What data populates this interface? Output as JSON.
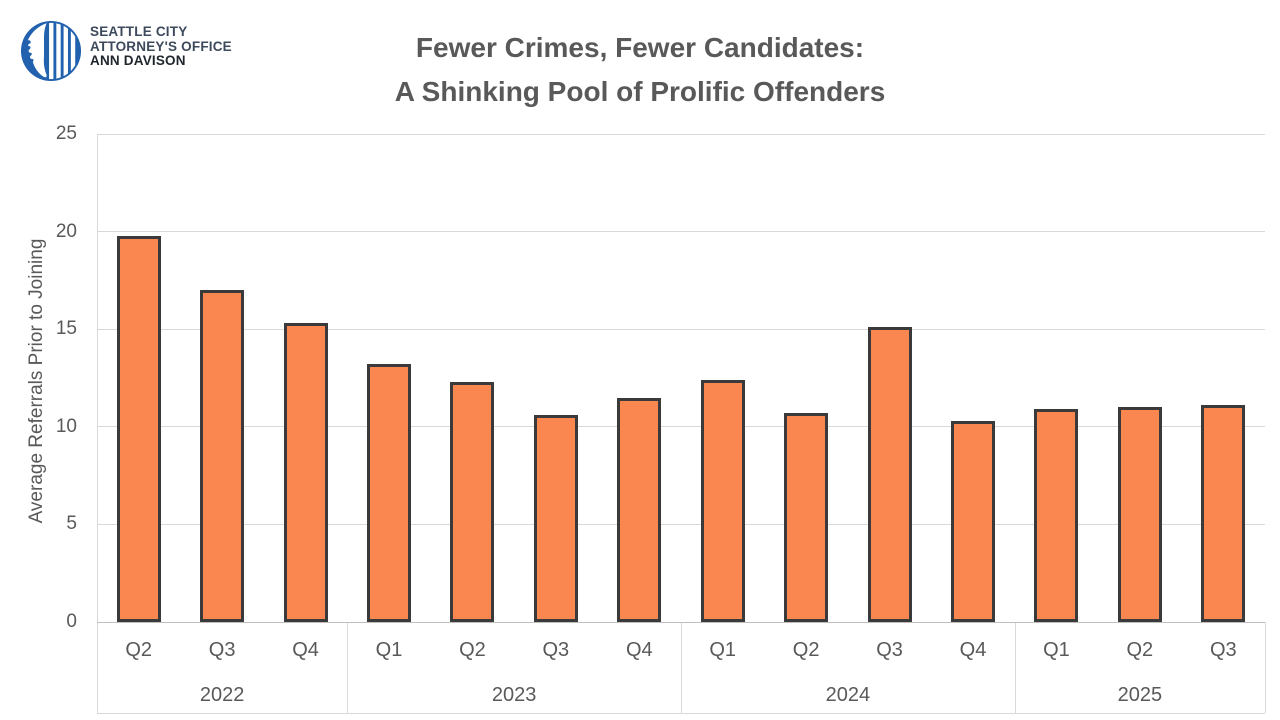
{
  "logo": {
    "org_line1": "SEATTLE CITY",
    "org_line2": "ATTORNEY'S OFFICE",
    "org_line3": "ANN DAVISON",
    "emblem": "seattle-city-emblem",
    "emblem_color": "#2161AD",
    "org_text_color": "#3D4A5C",
    "name_text_color": "#20262E"
  },
  "chart_data": {
    "type": "bar",
    "title_line1": "Fewer Crimes, Fewer Candidates:",
    "title_line2": "A Shinking Pool of Prolific Offenders",
    "title_color": "#595959",
    "ylabel": "Average Referrals Prior to Joining",
    "xlabel": "",
    "ylim": [
      0,
      25
    ],
    "yticks": [
      0,
      5,
      10,
      15,
      20,
      25
    ],
    "grid": true,
    "legend": false,
    "groups": [
      {
        "year": "2022",
        "quarters": [
          "Q2",
          "Q3",
          "Q4"
        ]
      },
      {
        "year": "2023",
        "quarters": [
          "Q1",
          "Q2",
          "Q3",
          "Q4"
        ]
      },
      {
        "year": "2024",
        "quarters": [
          "Q1",
          "Q2",
          "Q3",
          "Q4"
        ]
      },
      {
        "year": "2025",
        "quarters": [
          "Q1",
          "Q2",
          "Q3"
        ]
      }
    ],
    "categories": [
      "2022 Q2",
      "2022 Q3",
      "2022 Q4",
      "2023 Q1",
      "2023 Q2",
      "2023 Q3",
      "2023 Q4",
      "2024 Q1",
      "2024 Q2",
      "2024 Q3",
      "2024 Q4",
      "2025 Q1",
      "2025 Q2",
      "2025 Q3"
    ],
    "values": [
      19.8,
      17.0,
      15.3,
      13.2,
      12.3,
      10.6,
      11.5,
      12.4,
      10.7,
      15.1,
      10.3,
      10.9,
      11.0,
      11.1
    ],
    "bar_fill": "#FB8750",
    "bar_border": "#3A3A3A",
    "gridline_color": "#D9D9D9",
    "axis_line_color": "#BFBFBF",
    "label_color": "#595959"
  }
}
